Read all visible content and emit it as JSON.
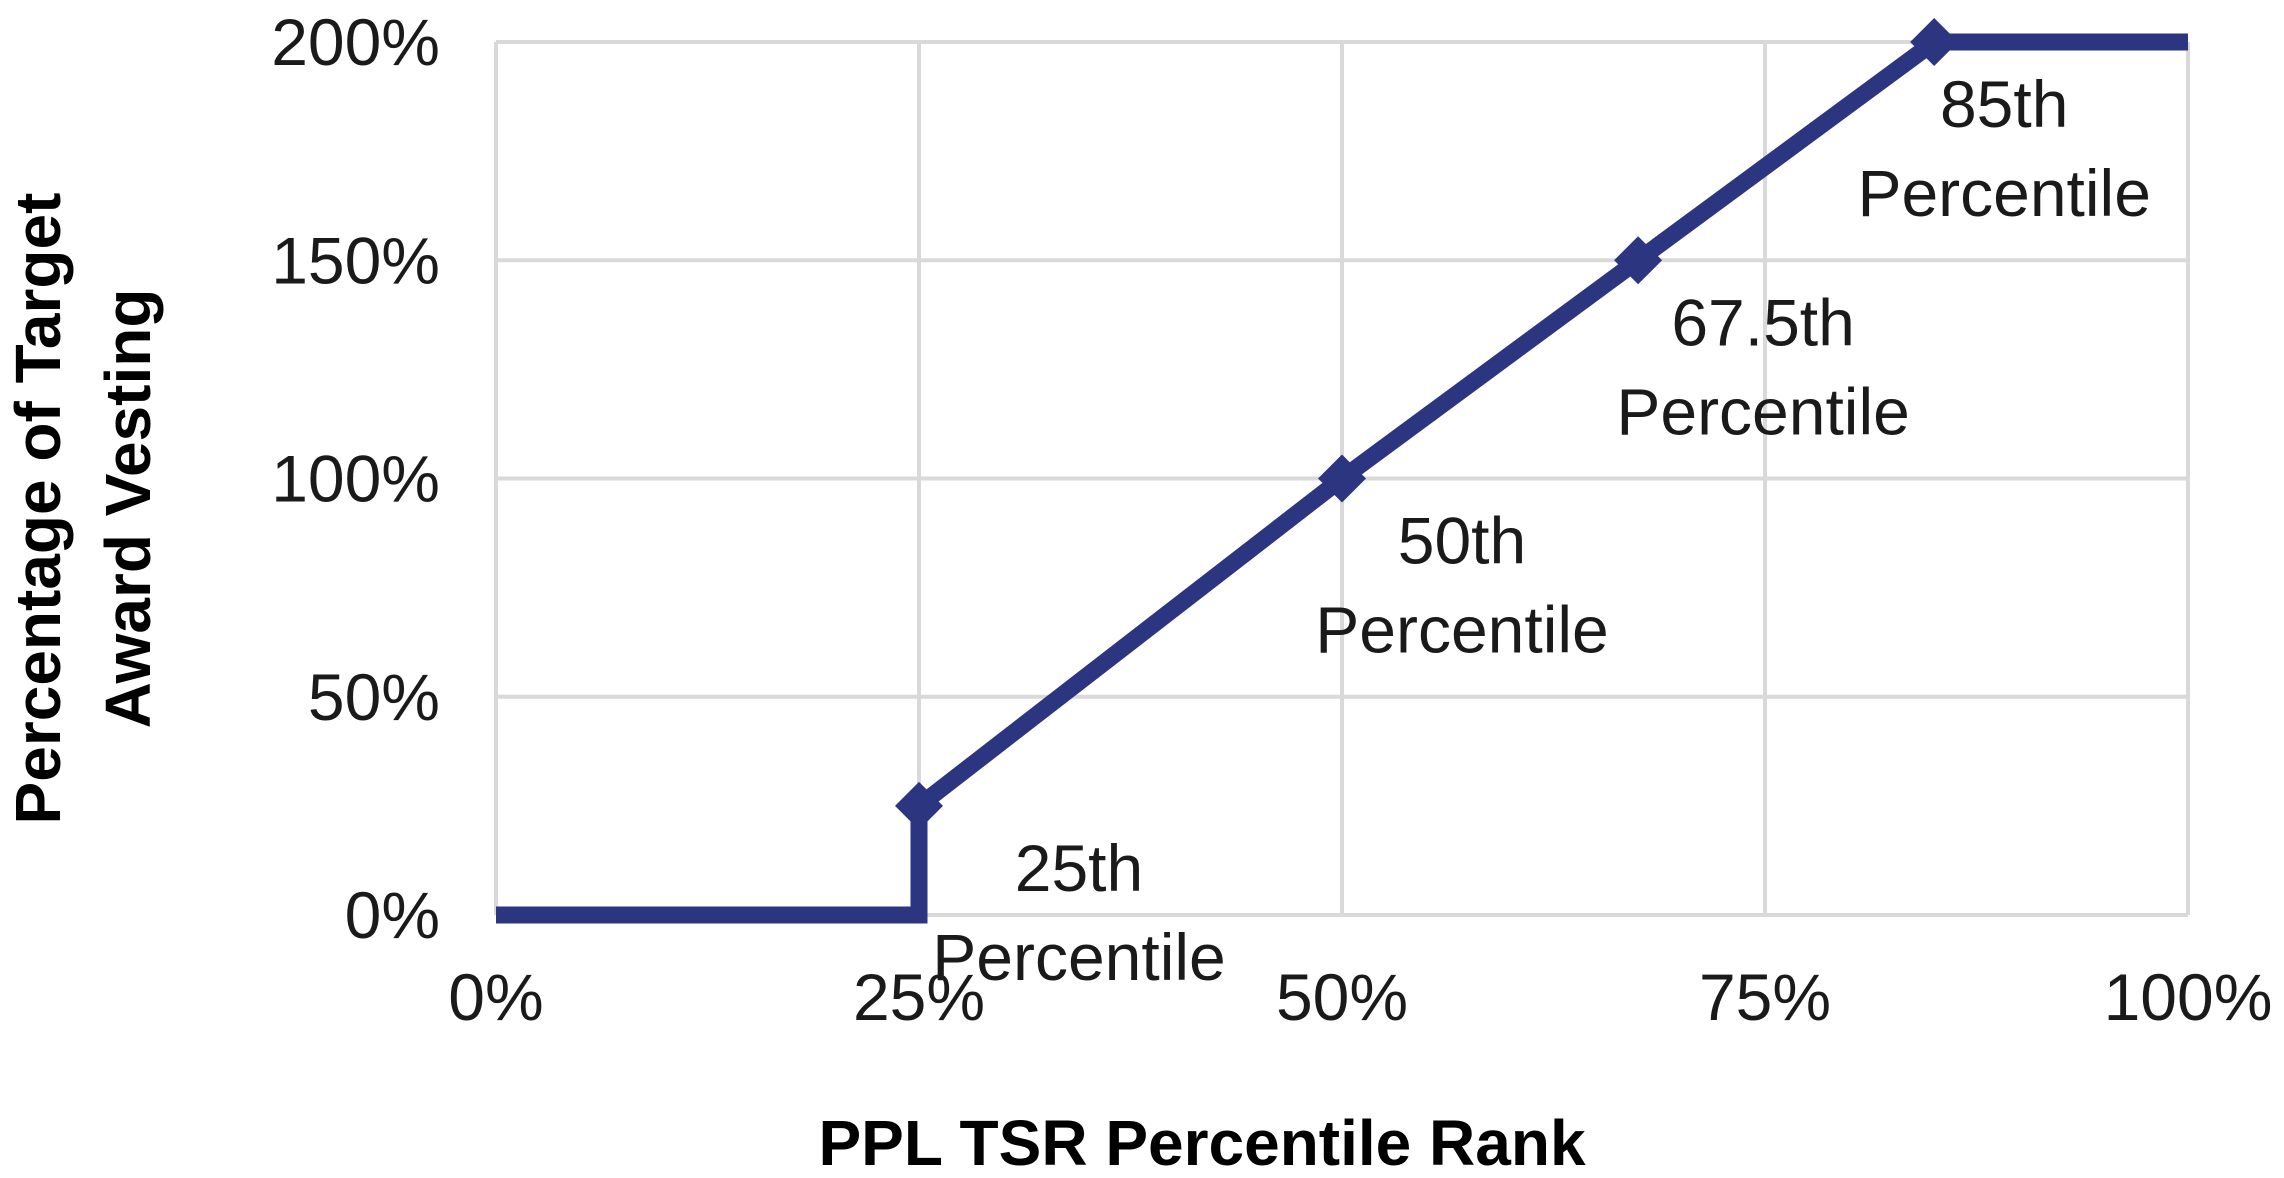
{
  "chart_data": {
    "type": "line",
    "title": "",
    "xlabel": "PPL TSR Percentile Rank",
    "ylabel_lines": [
      "Percentage of Target",
      "Award Vesting"
    ],
    "x_ticks": [
      "0%",
      "25%",
      "50%",
      "75%",
      "100%"
    ],
    "y_ticks": [
      "0%",
      "50%",
      "100%",
      "150%",
      "200%"
    ],
    "xlim": [
      0,
      100
    ],
    "ylim": [
      0,
      200
    ],
    "grid": true,
    "line_color": "#2b3580",
    "grid_color": "#d9d9d9",
    "series": [
      {
        "x": [
          0,
          25,
          25,
          50,
          67.5,
          85,
          100
        ],
        "y": [
          0,
          0,
          25,
          100,
          150,
          200,
          200
        ]
      }
    ],
    "markers": [
      {
        "x": 25,
        "y": 25
      },
      {
        "x": 50,
        "y": 100
      },
      {
        "x": 67.5,
        "y": 150
      },
      {
        "x": 85,
        "y": 200
      }
    ],
    "annotations": [
      {
        "x": 25,
        "y": 25,
        "lines": [
          "25th",
          "Percentile"
        ]
      },
      {
        "x": 50,
        "y": 100,
        "lines": [
          "50th",
          "Percentile"
        ]
      },
      {
        "x": 67.5,
        "y": 150,
        "lines": [
          "67.5th",
          "Percentile"
        ]
      },
      {
        "x": 85,
        "y": 200,
        "lines": [
          "85th",
          "Percentile"
        ]
      }
    ]
  }
}
